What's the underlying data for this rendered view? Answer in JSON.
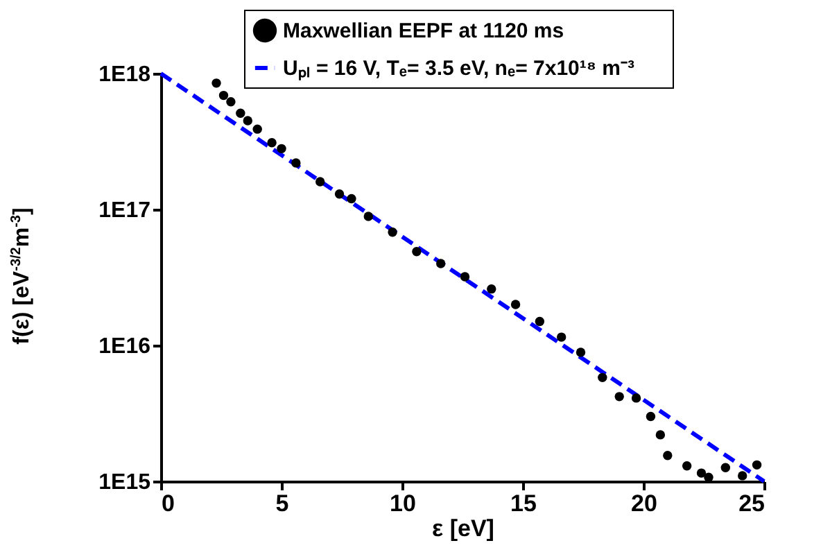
{
  "chart_data": {
    "type": "scatter",
    "xlabel": "ε  [eV]",
    "ylabel": "f(ε) [eV$^{-3/2}$m$^{-3}$]",
    "xlim": [
      0,
      25
    ],
    "xticks": [
      0,
      5,
      10,
      15,
      20,
      25
    ],
    "ylim": [
      1000000000000000.0,
      1e+18
    ],
    "yticks": [
      {
        "value": 1000000000000000.0,
        "label": "1E15"
      },
      {
        "value": 1e+16,
        "label": "1E16"
      },
      {
        "value": 1e+17,
        "label": "1E17"
      },
      {
        "value": 1e+18,
        "label": "1E18"
      }
    ],
    "log": "y",
    "grid": false,
    "legend": "top right",
    "series": [
      {
        "name": "Maxwellian  EEPF at 1120 ms",
        "marker": "circle",
        "color": "#000000",
        "x": [
          2.3,
          2.6,
          2.9,
          3.3,
          3.6,
          4.0,
          4.6,
          5.0,
          5.6,
          6.6,
          7.4,
          7.9,
          8.6,
          9.6,
          10.6,
          11.6,
          12.6,
          13.7,
          14.7,
          15.7,
          16.6,
          17.4,
          18.3,
          19.0,
          19.7,
          20.3,
          20.7,
          21.0,
          21.8,
          22.4,
          22.7,
          23.4,
          24.1,
          24.7
        ],
        "values": [
          8.5e+17,
          6.9e+17,
          6.2e+17,
          5.1e+17,
          4.5e+17,
          3.9e+17,
          3.1e+17,
          2.8e+17,
          2.2e+17,
          1.6e+17,
          1.3e+17,
          1.2e+17,
          8.9e+16,
          6.8e+16,
          4.9e+16,
          4e+16,
          3.2e+16,
          2.6e+16,
          2e+16,
          1.5e+16,
          1.15e+16,
          8900000000000000.0,
          5800000000000000.0,
          4200000000000000.0,
          4100000000000000.0,
          3000000000000000.0,
          2200000000000000.0,
          1550000000000000.0,
          1300000000000000.0,
          1150000000000000.0,
          1070000000000000.0,
          1260000000000000.0,
          1100000000000000.0,
          1320000000000000.0
        ]
      },
      {
        "name": "Uₚₗ = 16 V,   Tₑ= 3.5 eV,    nₑ= 7x10¹⁸ m⁻³",
        "type": "line",
        "line_style": "dashed",
        "color": "#0000ff",
        "x": [
          0,
          25
        ],
        "values": [
          1e+18,
          1000000000000000.0
        ]
      }
    ]
  }
}
